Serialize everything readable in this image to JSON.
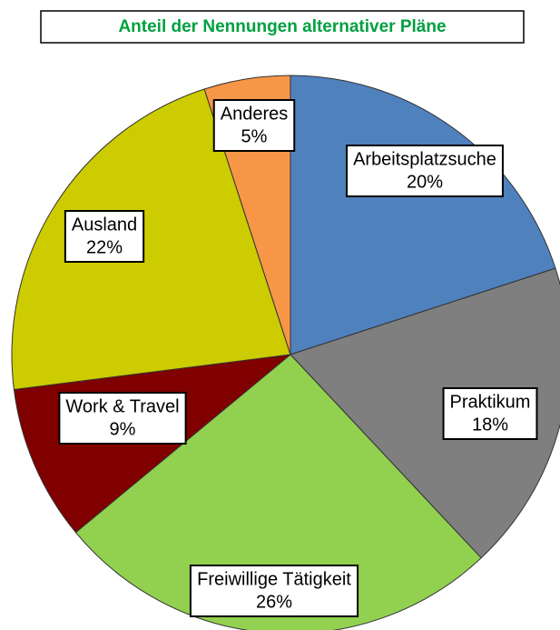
{
  "chart_data": {
    "type": "pie",
    "title": "Anteil der Nennungen alternativer Pläne",
    "categories": [
      "Arbeitsplatzsuche",
      "Praktikum",
      "Freiwillige Tätigkeit",
      "Work & Travel",
      "Ausland",
      "Anderes"
    ],
    "values": [
      20,
      18,
      26,
      9,
      22,
      5
    ],
    "value_labels": [
      "20%",
      "18%",
      "26%",
      "9%",
      "22%",
      "5%"
    ],
    "colors": [
      "#4f81bd",
      "#7f7f7f",
      "#92d050",
      "#800000",
      "#cccc00",
      "#f79646"
    ]
  }
}
